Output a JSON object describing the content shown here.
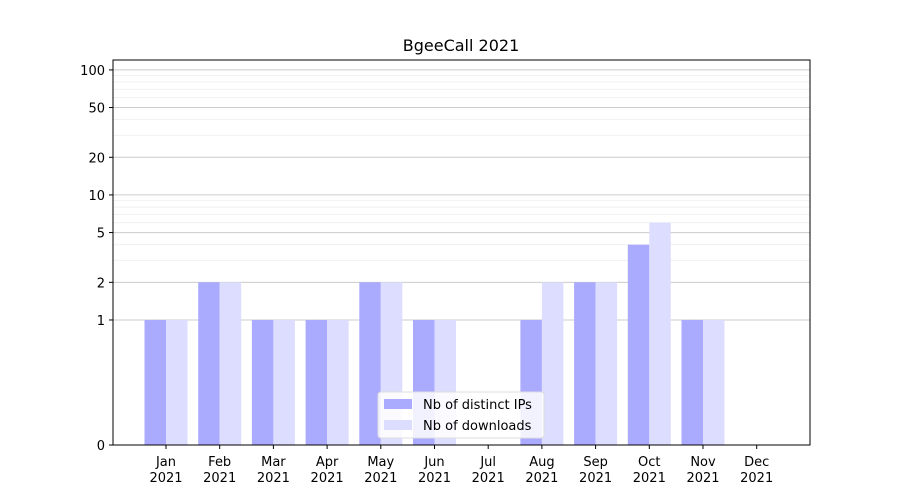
{
  "chart_data": {
    "type": "bar",
    "title": "BgeeCall 2021",
    "xlabel": "",
    "ylabel": "",
    "yscale": "symlog",
    "ylim": [
      0,
      120
    ],
    "yticks": [
      0,
      1,
      2,
      5,
      10,
      20,
      50,
      100
    ],
    "grid": true,
    "legend_position": "lower-center",
    "categories": [
      "Jan\n2021",
      "Feb\n2021",
      "Mar\n2021",
      "Apr\n2021",
      "May\n2021",
      "Jun\n2021",
      "Jul\n2021",
      "Aug\n2021",
      "Sep\n2021",
      "Oct\n2021",
      "Nov\n2021",
      "Dec\n2021"
    ],
    "series": [
      {
        "name": "Nb of distinct IPs",
        "color": "#aaaaff",
        "values": [
          1,
          2,
          1,
          1,
          2,
          1,
          0,
          1,
          2,
          4,
          1,
          0
        ]
      },
      {
        "name": "Nb of downloads",
        "color": "#ddddff",
        "values": [
          1,
          2,
          1,
          1,
          2,
          1,
          0,
          2,
          2,
          6,
          1,
          0
        ]
      }
    ]
  }
}
